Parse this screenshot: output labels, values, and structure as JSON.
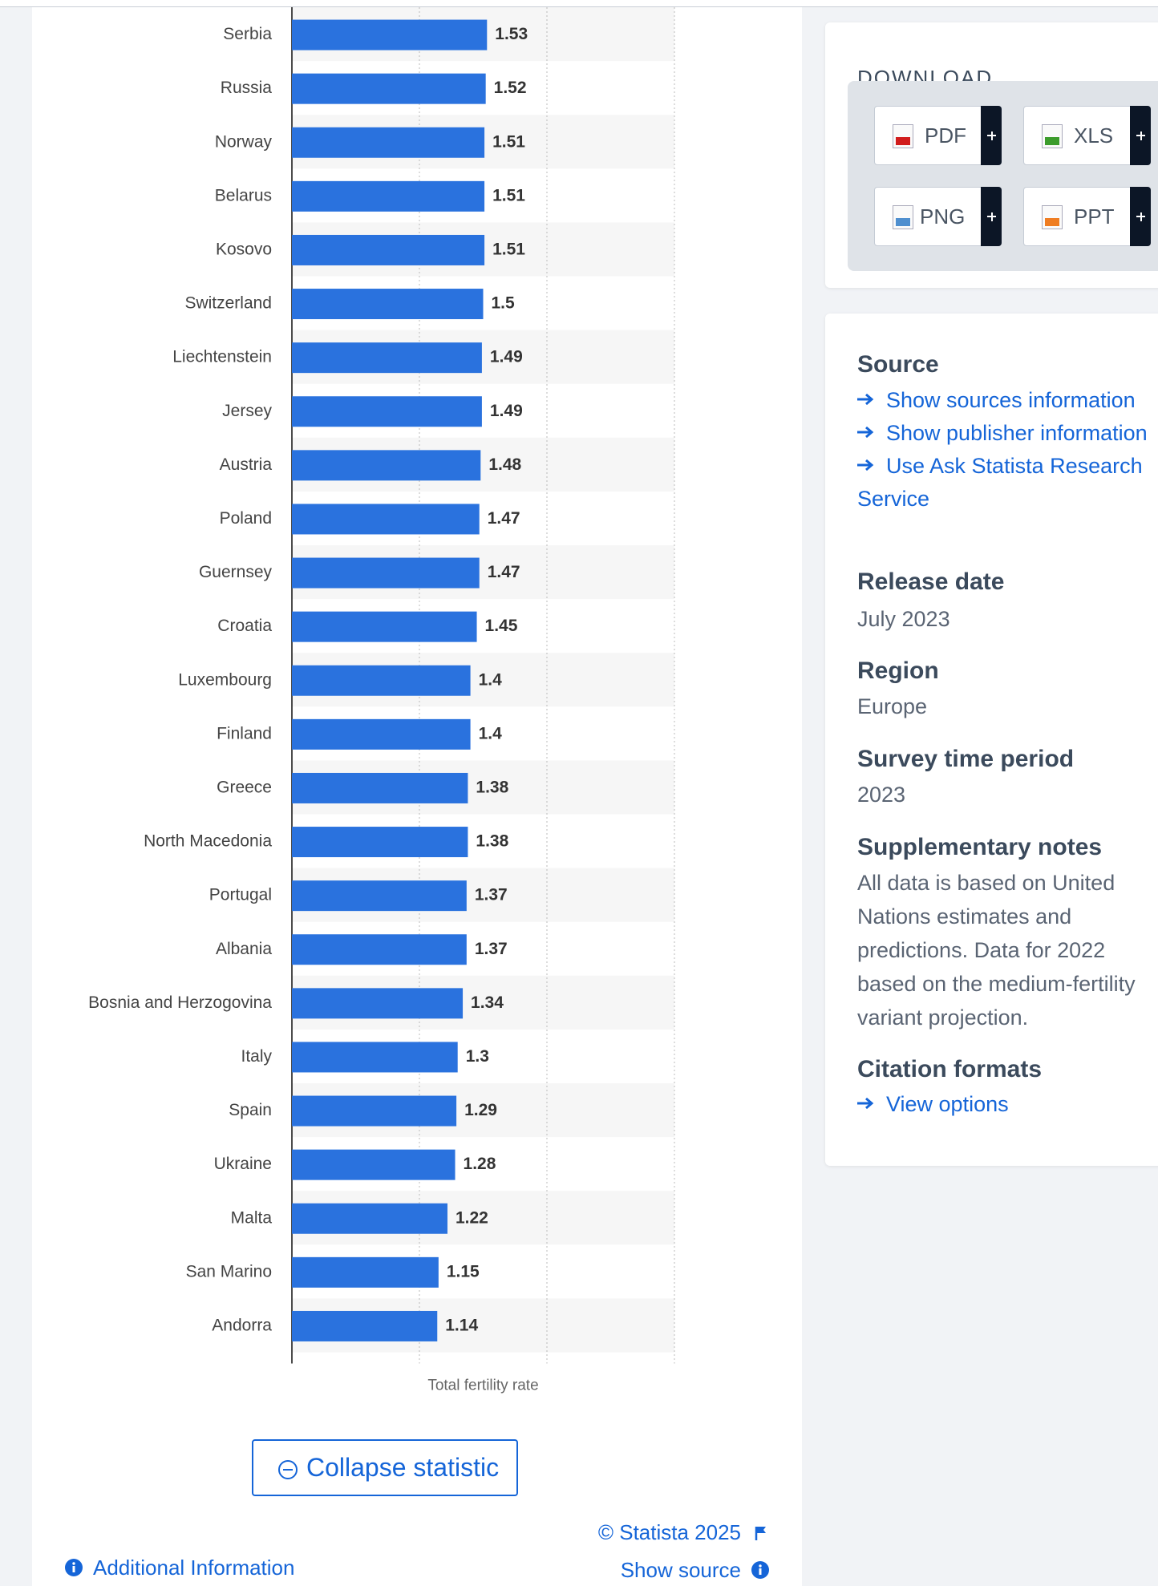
{
  "chart_data": {
    "type": "bar",
    "orientation": "horizontal",
    "categories": [
      "Serbia",
      "Russia",
      "Norway",
      "Belarus",
      "Kosovo",
      "Switzerland",
      "Liechtenstein",
      "Jersey",
      "Austria",
      "Poland",
      "Guernsey",
      "Croatia",
      "Luxembourg",
      "Finland",
      "Greece",
      "North Macedonia",
      "Portugal",
      "Albania",
      "Bosnia and Herzogovina",
      "Italy",
      "Spain",
      "Ukraine",
      "Malta",
      "San Marino",
      "Andorra"
    ],
    "values": [
      1.53,
      1.52,
      1.51,
      1.51,
      1.51,
      1.5,
      1.49,
      1.49,
      1.48,
      1.47,
      1.47,
      1.45,
      1.4,
      1.4,
      1.38,
      1.38,
      1.37,
      1.37,
      1.34,
      1.3,
      1.29,
      1.28,
      1.22,
      1.15,
      1.14
    ],
    "color": "#2a72de",
    "xlabel": "Total fertility rate",
    "xlim": [
      0,
      3
    ],
    "xticks": [
      0,
      1,
      2,
      3
    ],
    "grid": true
  },
  "download": {
    "title": "DOWNLOAD",
    "formats": [
      "PDF",
      "XLS",
      "PNG",
      "PPT"
    ]
  },
  "sidebar": {
    "source": {
      "title": "Source",
      "links": [
        "Show sources information",
        "Show publisher information",
        "Use Ask Statista Research Service"
      ]
    },
    "release_date": {
      "title": "Release date",
      "value": "July 2023"
    },
    "region": {
      "title": "Region",
      "value": "Europe"
    },
    "survey_time_period": {
      "title": "Survey time period",
      "value": "2023"
    },
    "supplementary_notes": {
      "title": "Supplementary notes",
      "text": "All data is based on United Nations estimates and predictions. Data for 2022 based on the medium-fertility variant projection."
    },
    "citation_formats": {
      "title": "Citation formats",
      "links": [
        "View options"
      ]
    }
  },
  "footer": {
    "collapse_button": "Collapse statistic",
    "copyright": "© Statista 2025",
    "show_source": "Show source",
    "additional_information": "Additional Information"
  }
}
